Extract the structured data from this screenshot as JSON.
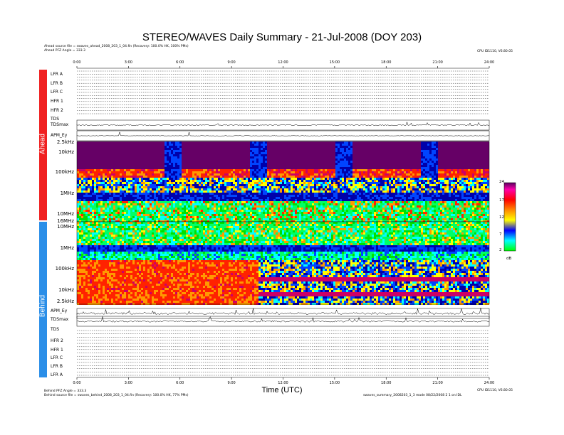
{
  "title": "STEREO/WAVES Daily Summary - 21-Jul-2008 (DOY 203)",
  "ahead_source": "Ahead source file = swaves_ahead_2008_203_1_04.fin (Recovery: 100.0% HK, 100% PMs)",
  "ahead_pfz": "Ahead PFZ Angle = 333.3",
  "ahead_cpu": "CPU ID1110, V6.80.05",
  "behind_pfz": "Behind PFZ Angle = 333.3",
  "behind_source": "Behind source file = swaves_behind_2008_203_1_04.fin (Recovery: 100.0% HK, 77% PMs)",
  "behind_cpu": "CPU ID1110, V6.80.05",
  "footer_right": "swaves_summary_2008203_1_3 made 08/22/2008 2 1 on IDL",
  "x_axis": {
    "label": "Time (UTC)",
    "ticks": [
      "0:00",
      "3:00",
      "6:00",
      "9:00",
      "12:00",
      "15:00",
      "18:00",
      "21:00",
      "24:00"
    ]
  },
  "spacecraft": {
    "ahead": "Ahead",
    "behind": "Behind"
  },
  "ahead_rows": [
    "LFR A",
    "LFR B",
    "LFR C",
    "HFR 1",
    "HFR 2",
    "TDS",
    "TDSmax",
    "APM_Ey"
  ],
  "behind_rows": [
    "APM_Ey",
    "TDSmax",
    "TDS",
    "HFR 2",
    "HFR 1",
    "LFR C",
    "LFR B",
    "LFR A"
  ],
  "freq_labels_ahead": [
    "2.5kHz",
    "10kHz",
    "100kHz",
    "1MHz",
    "10MHz"
  ],
  "freq_labels_behind": [
    "16MHz",
    "10MHz",
    "1MHz",
    "100kHz",
    "10kHz",
    "2.5kHz"
  ],
  "colorbar": {
    "ticks": [
      "24",
      "17",
      "12",
      "7",
      "2"
    ],
    "unit": "dB",
    "colors": [
      "#ff00ff",
      "#ff0000",
      "#ff8800",
      "#ffff00",
      "#00ff00",
      "#00ffff",
      "#0000ff"
    ]
  },
  "chart_data": {
    "type": "heatmap",
    "title": "STEREO/WAVES Daily Summary - 21-Jul-2008 (DOY 203)",
    "xlabel": "Time (UTC)",
    "xlim": [
      "0:00",
      "24:00"
    ],
    "panels": [
      {
        "name": "Ahead",
        "ylim": [
          "2.5kHz",
          "16MHz"
        ],
        "y_ticks": [
          "2.5kHz",
          "10kHz",
          "100kHz",
          "1MHz",
          "10MHz"
        ]
      },
      {
        "name": "Behind",
        "ylim": [
          "16MHz",
          "2.5kHz"
        ],
        "y_ticks": [
          "16MHz",
          "10MHz",
          "1MHz",
          "100kHz",
          "10kHz",
          "2.5kHz"
        ]
      }
    ],
    "colorbar_ticks": [
      24,
      17,
      12,
      7,
      2
    ],
    "colorbar_unit": "dB",
    "ahead_bursts_hours": [
      [
        5.0,
        6.0
      ],
      [
        10.0,
        11.0
      ],
      [
        15.0,
        16.0
      ],
      [
        20.0,
        21.0
      ]
    ],
    "behind_strong_interval_hours": [
      [
        0.0,
        10.5
      ]
    ]
  }
}
